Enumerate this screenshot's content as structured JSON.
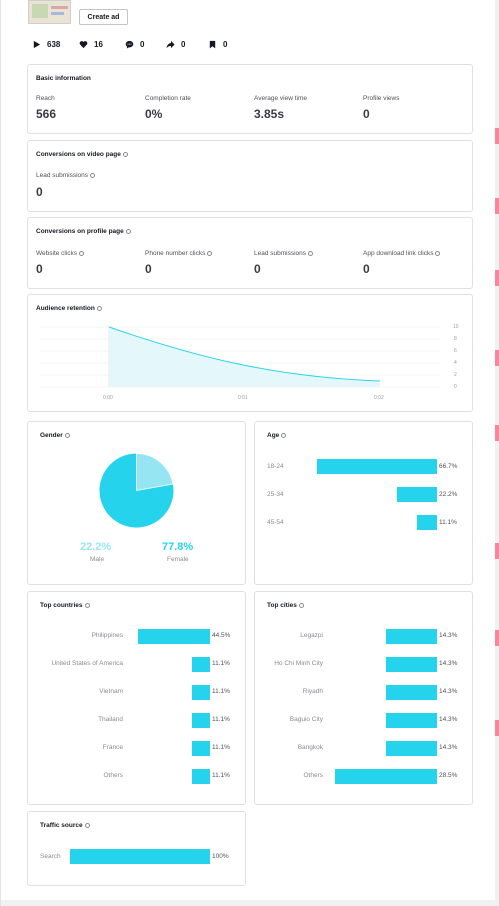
{
  "header": {
    "create_ad_label": "Create ad"
  },
  "stats": [
    {
      "icon": "play-icon",
      "value": "638"
    },
    {
      "icon": "heart-icon",
      "value": "16"
    },
    {
      "icon": "comment-icon",
      "value": "0"
    },
    {
      "icon": "share-icon",
      "value": "0"
    },
    {
      "icon": "bookmark-icon",
      "value": "0"
    }
  ],
  "basic_info": {
    "title": "Basic information",
    "metrics": [
      {
        "label": "Reach",
        "value": "566"
      },
      {
        "label": "Completion rate",
        "value": "0%"
      },
      {
        "label": "Average view time",
        "value": "3.85s"
      },
      {
        "label": "Profile views",
        "value": "0"
      }
    ]
  },
  "video_page": {
    "title": "Conversions on video page",
    "metrics": [
      {
        "label": "Lead submissions",
        "value": "0"
      }
    ]
  },
  "profile_page": {
    "title": "Conversions on profile page",
    "metrics": [
      {
        "label": "Website clicks",
        "value": "0"
      },
      {
        "label": "Phone number clicks",
        "value": "0"
      },
      {
        "label": "Lead submissions",
        "value": "0"
      },
      {
        "label": "App download link clicks",
        "value": "0"
      }
    ]
  },
  "retention": {
    "title": "Audience retention",
    "x_ticks": [
      "0:00",
      "0:01",
      "0:02"
    ],
    "y_ticks": [
      "10",
      "8",
      "6",
      "4",
      "2",
      "0"
    ]
  },
  "gender": {
    "title": "Gender",
    "male_pct": "22.2%",
    "male_label": "Male",
    "female_pct": "77.8%",
    "female_label": "Female",
    "male_fraction": 0.222,
    "colors": {
      "male": "#95e6f2",
      "female": "#25d4ec"
    }
  },
  "age": {
    "title": "Age",
    "rows": [
      {
        "label": "18-24",
        "pct": "66.7%",
        "value": 66.7
      },
      {
        "label": "25-34",
        "pct": "22.2%",
        "value": 22.2
      },
      {
        "label": "45-54",
        "pct": "11.1%",
        "value": 11.1
      }
    ]
  },
  "countries": {
    "title": "Top countries",
    "rows": [
      {
        "label": "Philippines",
        "pct": "44.5%",
        "value": 44.5
      },
      {
        "label": "United States of America",
        "pct": "11.1%",
        "value": 11.1
      },
      {
        "label": "Vietnam",
        "pct": "11.1%",
        "value": 11.1
      },
      {
        "label": "Thailand",
        "pct": "11.1%",
        "value": 11.1
      },
      {
        "label": "France",
        "pct": "11.1%",
        "value": 11.1
      },
      {
        "label": "Others",
        "pct": "11.1%",
        "value": 11.1
      }
    ]
  },
  "cities": {
    "title": "Top cities",
    "rows": [
      {
        "label": "Legazpi",
        "pct": "14.3%",
        "value": 14.3
      },
      {
        "label": "Ho Chi Minh City",
        "pct": "14.3%",
        "value": 14.3
      },
      {
        "label": "Riyadh",
        "pct": "14.3%",
        "value": 14.3
      },
      {
        "label": "Baguio City",
        "pct": "14.3%",
        "value": 14.3
      },
      {
        "label": "Bangkok",
        "pct": "14.3%",
        "value": 14.3
      },
      {
        "label": "Others",
        "pct": "28.5%",
        "value": 28.5
      }
    ]
  },
  "traffic": {
    "title": "Traffic source",
    "rows": [
      {
        "label": "Search",
        "pct": "100%",
        "value": 100
      }
    ]
  },
  "theme": {
    "accent": "#25d4ec",
    "accent_light": "#95e6f2",
    "brand_red": "#fe2c55"
  }
}
